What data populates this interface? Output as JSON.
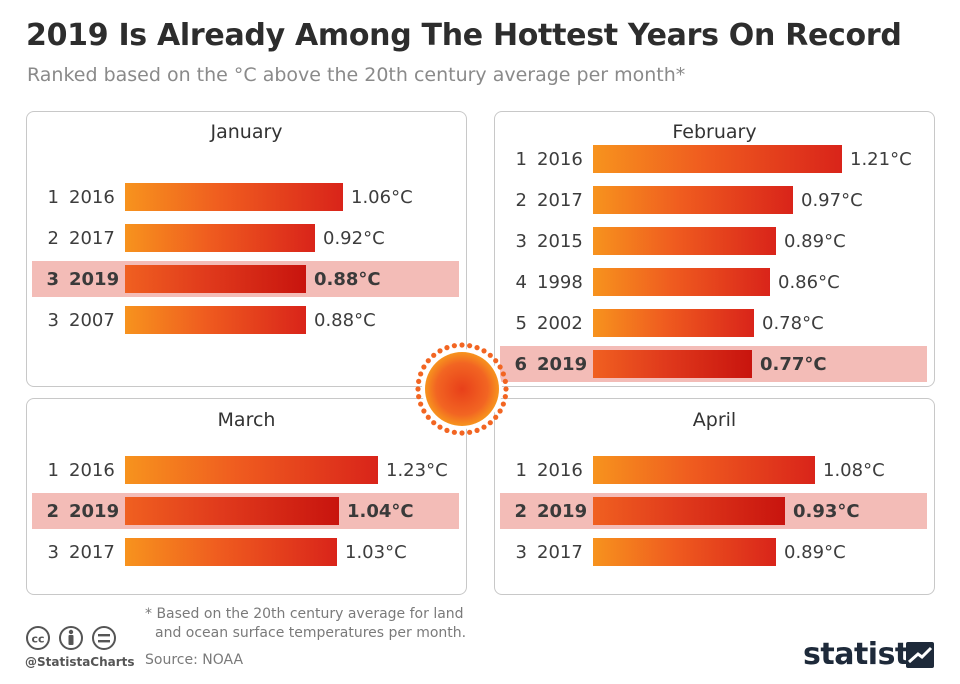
{
  "title": "2019 Is Already Among The Hottest Years On Record",
  "subtitle": "Ranked based on the °C above the 20th century average per month*",
  "chart_data": [
    {
      "type": "bar",
      "title": "January",
      "unit": "°C",
      "categories": [
        "2016",
        "2017",
        "2019",
        "2007"
      ],
      "ranks": [
        "1",
        "2",
        "3",
        "3"
      ],
      "values": [
        1.06,
        0.92,
        0.88,
        0.88
      ],
      "labels": [
        "1.06°C",
        "0.92°C",
        "0.88°C",
        "0.88°C"
      ],
      "highlight": "2019"
    },
    {
      "type": "bar",
      "title": "February",
      "unit": "°C",
      "categories": [
        "2016",
        "2017",
        "2015",
        "1998",
        "2002",
        "2019"
      ],
      "ranks": [
        "1",
        "2",
        "3",
        "4",
        "5",
        "6"
      ],
      "values": [
        1.21,
        0.97,
        0.89,
        0.86,
        0.78,
        0.77
      ],
      "labels": [
        "1.21°C",
        "0.97°C",
        "0.89°C",
        "0.86°C",
        "0.78°C",
        "0.77°C"
      ],
      "highlight": "2019"
    },
    {
      "type": "bar",
      "title": "March",
      "unit": "°C",
      "categories": [
        "2016",
        "2019",
        "2017"
      ],
      "ranks": [
        "1",
        "2",
        "3"
      ],
      "values": [
        1.23,
        1.04,
        1.03
      ],
      "labels": [
        "1.23°C",
        "1.04°C",
        "1.03°C"
      ],
      "highlight": "2019"
    },
    {
      "type": "bar",
      "title": "April",
      "unit": "°C",
      "categories": [
        "2016",
        "2019",
        "2017"
      ],
      "ranks": [
        "1",
        "2",
        "3"
      ],
      "values": [
        1.08,
        0.93,
        0.89
      ],
      "labels": [
        "1.08°C",
        "0.93°C",
        "0.89°C"
      ],
      "highlight": "2019"
    }
  ],
  "footnote": {
    "line1": "* Based on the 20th century average for land",
    "line2": "and ocean surface temperatures per month."
  },
  "source": "Source: NOAA",
  "handle": "@StatistaCharts",
  "brand": "statista",
  "colors": {
    "bar_start": "#f7931e",
    "bar_end": "#d9241a",
    "highlight_bg": "#f3bcb7",
    "sun_center": "#e8401a",
    "sun_edge": "#f7941e"
  },
  "icons": [
    "creative-commons-icon",
    "attribution-icon",
    "no-derivatives-icon",
    "sun-icon",
    "statista-logo-icon"
  ]
}
